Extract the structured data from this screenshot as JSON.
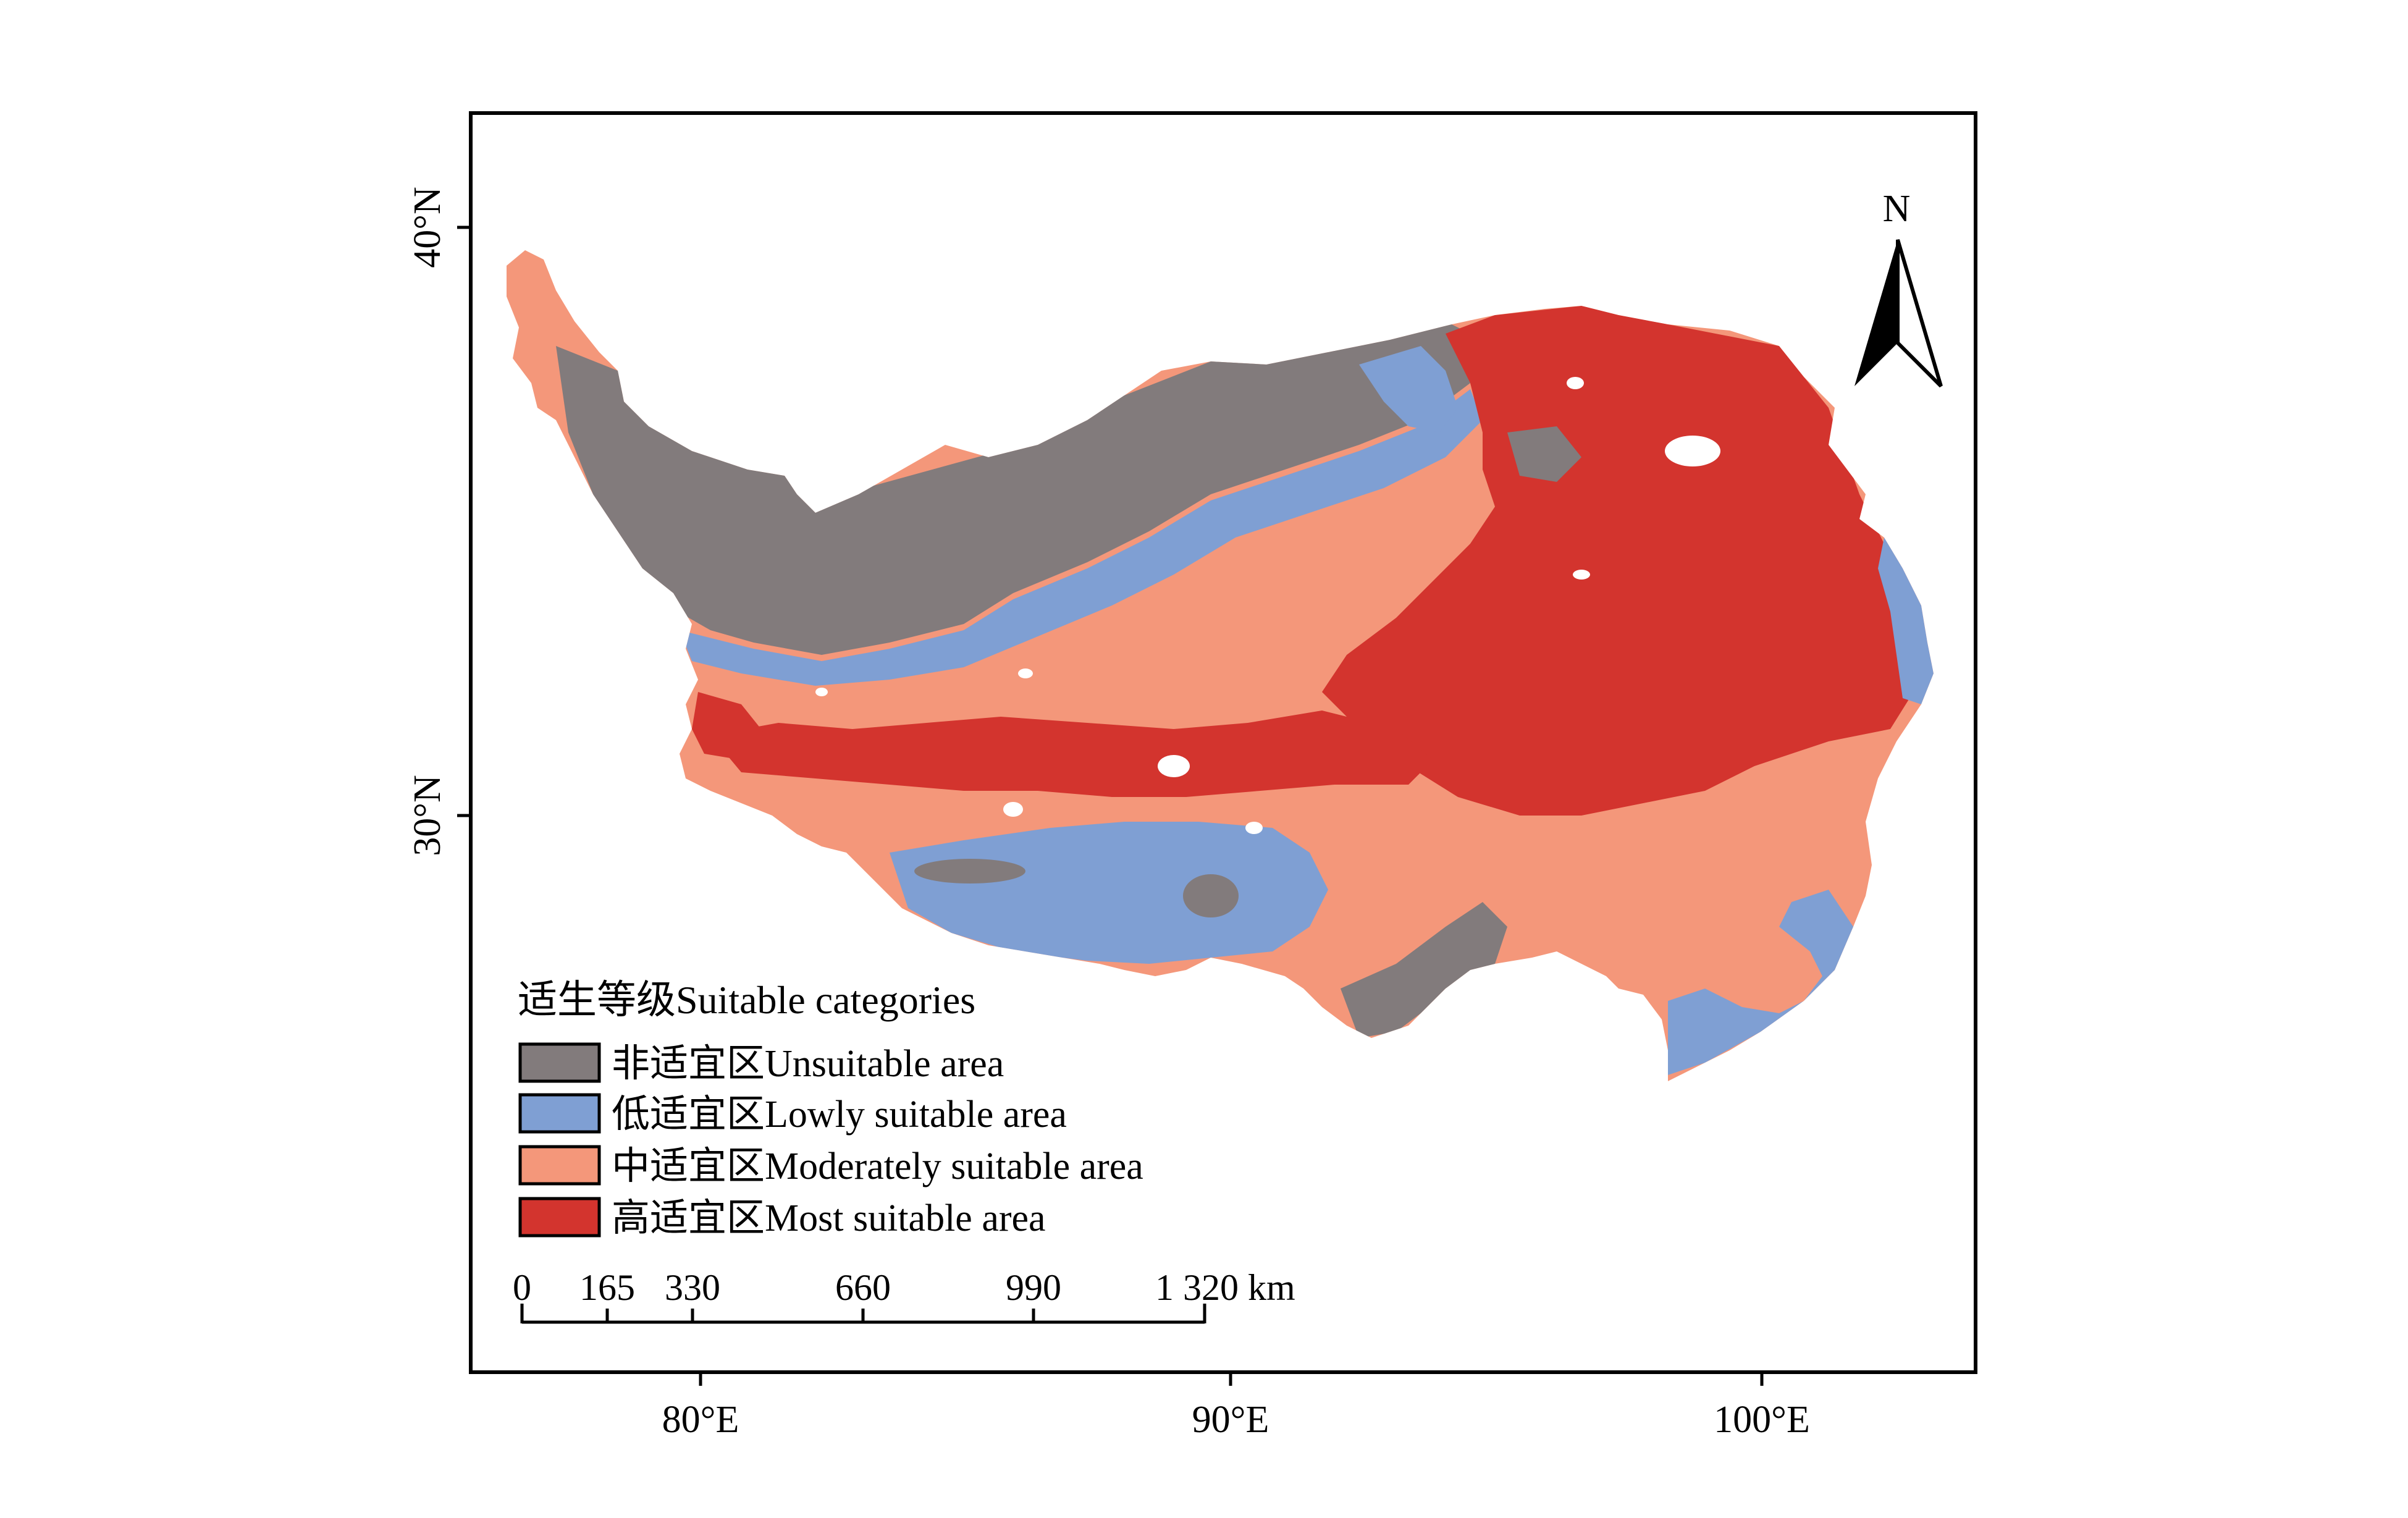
{
  "map": {
    "lat_ticks": [
      {
        "value": 40,
        "label": "40°N"
      },
      {
        "value": 30,
        "label": "30°N"
      }
    ],
    "lon_ticks": [
      {
        "value": 80,
        "label": "80°E"
      },
      {
        "value": 90,
        "label": "90°E"
      },
      {
        "value": 100,
        "label": "100°E"
      }
    ],
    "north_arrow": {
      "label": "N",
      "icon": "north-arrow-icon"
    },
    "colors": {
      "unsuitable": "#827b7c",
      "lowly": "#7f9fd3",
      "moderately": "#f4977a",
      "most": "#d3342e",
      "lake": "#ffffff",
      "frame": "#000000"
    }
  },
  "legend": {
    "title": "适生等级Suitable categories",
    "items": [
      {
        "key": "unsuitable",
        "label": "非适宜区Unsuitable area",
        "color": "#827b7c"
      },
      {
        "key": "lowly",
        "label": "低适宜区Lowly suitable area",
        "color": "#7f9fd3"
      },
      {
        "key": "moderately",
        "label": "中适宜区Moderately suitable area",
        "color": "#f4977a"
      },
      {
        "key": "most",
        "label": "高适宜区Most suitable area",
        "color": "#d3342e"
      }
    ]
  },
  "scale_bar": {
    "labels": [
      "0",
      "165",
      "330",
      "660",
      "990",
      "1 320 km"
    ]
  }
}
